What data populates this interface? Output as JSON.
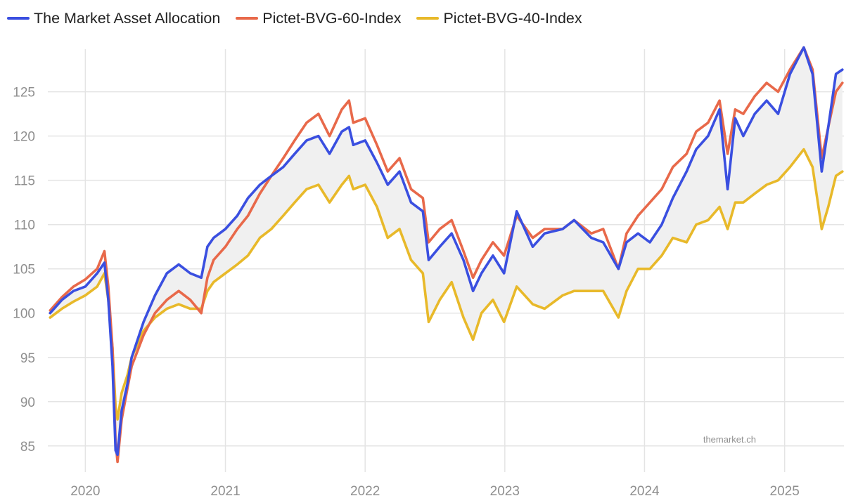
{
  "chart_data": {
    "type": "line",
    "title": "",
    "xlabel": "",
    "ylabel": "",
    "xlim": [
      "2019-09-25",
      "2025-06-05"
    ],
    "ylim": [
      83,
      131
    ],
    "grid": true,
    "legend_position": "top-left",
    "x_tick_labels": [
      "2020",
      "2021",
      "2022",
      "2023",
      "2024",
      "2025"
    ],
    "y_tick_labels": [
      "85",
      "90",
      "95",
      "100",
      "105",
      "110",
      "115",
      "120",
      "125"
    ],
    "watermark": "themarket.ch",
    "band_fill": "#f0f0f0",
    "series": [
      {
        "name": "The Market Asset Allocation",
        "color": "#3a4fe0",
        "points": [
          [
            "2019-10-01",
            100.0
          ],
          [
            "2019-11-01",
            101.5
          ],
          [
            "2019-12-01",
            102.5
          ],
          [
            "2020-01-01",
            103.0
          ],
          [
            "2020-02-01",
            104.5
          ],
          [
            "2020-02-20",
            105.7
          ],
          [
            "2020-03-01",
            101.5
          ],
          [
            "2020-03-12",
            94.0
          ],
          [
            "2020-03-20",
            84.5
          ],
          [
            "2020-03-25",
            84.0
          ],
          [
            "2020-04-05",
            89.0
          ],
          [
            "2020-04-20",
            92.0
          ],
          [
            "2020-05-01",
            95.0
          ],
          [
            "2020-06-01",
            99.0
          ],
          [
            "2020-07-01",
            102.0
          ],
          [
            "2020-08-01",
            104.5
          ],
          [
            "2020-09-01",
            105.5
          ],
          [
            "2020-10-01",
            104.5
          ],
          [
            "2020-10-30",
            104.0
          ],
          [
            "2020-11-15",
            107.5
          ],
          [
            "2020-12-01",
            108.5
          ],
          [
            "2021-01-01",
            109.5
          ],
          [
            "2021-02-01",
            111.0
          ],
          [
            "2021-03-01",
            113.0
          ],
          [
            "2021-04-01",
            114.5
          ],
          [
            "2021-05-01",
            115.5
          ],
          [
            "2021-06-01",
            116.5
          ],
          [
            "2021-07-01",
            118.0
          ],
          [
            "2021-08-01",
            119.5
          ],
          [
            "2021-09-01",
            120.0
          ],
          [
            "2021-09-30",
            118.0
          ],
          [
            "2021-11-01",
            120.5
          ],
          [
            "2021-11-20",
            121.0
          ],
          [
            "2021-12-01",
            119.0
          ],
          [
            "2022-01-01",
            119.5
          ],
          [
            "2022-02-01",
            117.0
          ],
          [
            "2022-03-01",
            114.5
          ],
          [
            "2022-04-01",
            116.0
          ],
          [
            "2022-05-01",
            112.5
          ],
          [
            "2022-06-01",
            111.5
          ],
          [
            "2022-06-16",
            106.0
          ],
          [
            "2022-07-15",
            107.5
          ],
          [
            "2022-08-15",
            109.0
          ],
          [
            "2022-09-15",
            106.0
          ],
          [
            "2022-10-10",
            102.5
          ],
          [
            "2022-11-01",
            104.5
          ],
          [
            "2022-12-01",
            106.5
          ],
          [
            "2022-12-30",
            104.5
          ],
          [
            "2023-02-01",
            111.5
          ],
          [
            "2023-03-15",
            107.5
          ],
          [
            "2023-04-15",
            109.0
          ],
          [
            "2023-06-01",
            109.5
          ],
          [
            "2023-07-01",
            110.5
          ],
          [
            "2023-08-15",
            108.5
          ],
          [
            "2023-09-15",
            108.0
          ],
          [
            "2023-10-25",
            105.0
          ],
          [
            "2023-11-15",
            108.0
          ],
          [
            "2023-12-15",
            109.0
          ],
          [
            "2024-01-15",
            108.0
          ],
          [
            "2024-02-15",
            110.0
          ],
          [
            "2024-03-15",
            113.0
          ],
          [
            "2024-04-20",
            116.0
          ],
          [
            "2024-05-15",
            118.5
          ],
          [
            "2024-06-15",
            120.0
          ],
          [
            "2024-07-15",
            123.0
          ],
          [
            "2024-08-05",
            114.0
          ],
          [
            "2024-08-25",
            122.0
          ],
          [
            "2024-09-15",
            120.0
          ],
          [
            "2024-10-15",
            122.5
          ],
          [
            "2024-11-15",
            124.0
          ],
          [
            "2024-12-15",
            122.5
          ],
          [
            "2025-01-15",
            127.0
          ],
          [
            "2025-02-20",
            130.0
          ],
          [
            "2025-03-15",
            127.0
          ],
          [
            "2025-04-08",
            116.0
          ],
          [
            "2025-04-25",
            121.0
          ],
          [
            "2025-05-15",
            127.0
          ],
          [
            "2025-06-01",
            127.5
          ]
        ]
      },
      {
        "name": "Pictet-BVG-60-Index",
        "color": "#e8694a",
        "points": [
          [
            "2019-10-01",
            100.3
          ],
          [
            "2019-11-01",
            101.8
          ],
          [
            "2019-12-01",
            103.0
          ],
          [
            "2020-01-01",
            103.8
          ],
          [
            "2020-02-01",
            105.0
          ],
          [
            "2020-02-20",
            107.0
          ],
          [
            "2020-03-01",
            103.0
          ],
          [
            "2020-03-12",
            96.0
          ],
          [
            "2020-03-20",
            85.5
          ],
          [
            "2020-03-25",
            83.2
          ],
          [
            "2020-04-05",
            88.0
          ],
          [
            "2020-04-20",
            91.5
          ],
          [
            "2020-05-01",
            94.0
          ],
          [
            "2020-06-01",
            97.5
          ],
          [
            "2020-07-01",
            100.0
          ],
          [
            "2020-08-01",
            101.5
          ],
          [
            "2020-09-01",
            102.5
          ],
          [
            "2020-10-01",
            101.5
          ],
          [
            "2020-10-30",
            100.0
          ],
          [
            "2020-11-15",
            104.0
          ],
          [
            "2020-12-01",
            106.0
          ],
          [
            "2021-01-01",
            107.5
          ],
          [
            "2021-02-01",
            109.5
          ],
          [
            "2021-03-01",
            111.0
          ],
          [
            "2021-04-01",
            113.5
          ],
          [
            "2021-05-01",
            115.5
          ],
          [
            "2021-06-01",
            117.5
          ],
          [
            "2021-07-01",
            119.5
          ],
          [
            "2021-08-01",
            121.5
          ],
          [
            "2021-09-01",
            122.5
          ],
          [
            "2021-09-30",
            120.0
          ],
          [
            "2021-11-01",
            123.0
          ],
          [
            "2021-11-20",
            124.0
          ],
          [
            "2021-12-01",
            121.5
          ],
          [
            "2022-01-01",
            122.0
          ],
          [
            "2022-02-01",
            119.0
          ],
          [
            "2022-03-01",
            116.0
          ],
          [
            "2022-04-01",
            117.5
          ],
          [
            "2022-05-01",
            114.0
          ],
          [
            "2022-06-01",
            113.0
          ],
          [
            "2022-06-16",
            108.0
          ],
          [
            "2022-07-15",
            109.5
          ],
          [
            "2022-08-15",
            110.5
          ],
          [
            "2022-09-15",
            107.0
          ],
          [
            "2022-10-10",
            104.0
          ],
          [
            "2022-11-01",
            106.0
          ],
          [
            "2022-12-01",
            108.0
          ],
          [
            "2022-12-30",
            106.5
          ],
          [
            "2023-02-01",
            111.0
          ],
          [
            "2023-03-15",
            108.5
          ],
          [
            "2023-04-15",
            109.5
          ],
          [
            "2023-06-01",
            109.5
          ],
          [
            "2023-07-01",
            110.5
          ],
          [
            "2023-08-15",
            109.0
          ],
          [
            "2023-09-15",
            109.5
          ],
          [
            "2023-10-25",
            105.0
          ],
          [
            "2023-11-15",
            109.0
          ],
          [
            "2023-12-15",
            111.0
          ],
          [
            "2024-01-15",
            112.5
          ],
          [
            "2024-02-15",
            114.0
          ],
          [
            "2024-03-15",
            116.5
          ],
          [
            "2024-04-20",
            118.0
          ],
          [
            "2024-05-15",
            120.5
          ],
          [
            "2024-06-15",
            121.5
          ],
          [
            "2024-07-15",
            124.0
          ],
          [
            "2024-08-05",
            118.0
          ],
          [
            "2024-08-25",
            123.0
          ],
          [
            "2024-09-15",
            122.5
          ],
          [
            "2024-10-15",
            124.5
          ],
          [
            "2024-11-15",
            126.0
          ],
          [
            "2024-12-15",
            125.0
          ],
          [
            "2025-01-15",
            127.5
          ],
          [
            "2025-02-20",
            130.0
          ],
          [
            "2025-03-15",
            127.5
          ],
          [
            "2025-04-08",
            117.5
          ],
          [
            "2025-04-25",
            121.0
          ],
          [
            "2025-05-15",
            125.0
          ],
          [
            "2025-06-01",
            126.0
          ]
        ]
      },
      {
        "name": "Pictet-BVG-40-Index",
        "color": "#e8b92a",
        "points": [
          [
            "2019-10-01",
            99.5
          ],
          [
            "2019-11-01",
            100.5
          ],
          [
            "2019-12-01",
            101.3
          ],
          [
            "2020-01-01",
            102.0
          ],
          [
            "2020-02-01",
            103.0
          ],
          [
            "2020-02-20",
            104.5
          ],
          [
            "2020-03-01",
            101.5
          ],
          [
            "2020-03-12",
            96.0
          ],
          [
            "2020-03-20",
            89.5
          ],
          [
            "2020-03-25",
            88.0
          ],
          [
            "2020-04-05",
            91.0
          ],
          [
            "2020-04-20",
            93.0
          ],
          [
            "2020-05-01",
            95.0
          ],
          [
            "2020-06-01",
            98.0
          ],
          [
            "2020-07-01",
            99.5
          ],
          [
            "2020-08-01",
            100.5
          ],
          [
            "2020-09-01",
            101.0
          ],
          [
            "2020-10-01",
            100.5
          ],
          [
            "2020-10-30",
            100.5
          ],
          [
            "2020-11-15",
            102.5
          ],
          [
            "2020-12-01",
            103.5
          ],
          [
            "2021-01-01",
            104.5
          ],
          [
            "2021-02-01",
            105.5
          ],
          [
            "2021-03-01",
            106.5
          ],
          [
            "2021-04-01",
            108.5
          ],
          [
            "2021-05-01",
            109.5
          ],
          [
            "2021-06-01",
            111.0
          ],
          [
            "2021-07-01",
            112.5
          ],
          [
            "2021-08-01",
            114.0
          ],
          [
            "2021-09-01",
            114.5
          ],
          [
            "2021-09-30",
            112.5
          ],
          [
            "2021-11-01",
            114.5
          ],
          [
            "2021-11-20",
            115.5
          ],
          [
            "2021-12-01",
            114.0
          ],
          [
            "2022-01-01",
            114.5
          ],
          [
            "2022-02-01",
            112.0
          ],
          [
            "2022-03-01",
            108.5
          ],
          [
            "2022-04-01",
            109.5
          ],
          [
            "2022-05-01",
            106.0
          ],
          [
            "2022-06-01",
            104.5
          ],
          [
            "2022-06-16",
            99.0
          ],
          [
            "2022-07-15",
            101.5
          ],
          [
            "2022-08-15",
            103.5
          ],
          [
            "2022-09-15",
            99.5
          ],
          [
            "2022-10-10",
            97.0
          ],
          [
            "2022-11-01",
            100.0
          ],
          [
            "2022-12-01",
            101.5
          ],
          [
            "2022-12-30",
            99.0
          ],
          [
            "2023-02-01",
            103.0
          ],
          [
            "2023-03-15",
            101.0
          ],
          [
            "2023-04-15",
            100.5
          ],
          [
            "2023-06-01",
            102.0
          ],
          [
            "2023-07-01",
            102.5
          ],
          [
            "2023-08-15",
            102.5
          ],
          [
            "2023-09-15",
            102.5
          ],
          [
            "2023-10-25",
            99.5
          ],
          [
            "2023-11-15",
            102.5
          ],
          [
            "2023-12-15",
            105.0
          ],
          [
            "2024-01-15",
            105.0
          ],
          [
            "2024-02-15",
            106.5
          ],
          [
            "2024-03-15",
            108.5
          ],
          [
            "2024-04-20",
            108.0
          ],
          [
            "2024-05-15",
            110.0
          ],
          [
            "2024-06-15",
            110.5
          ],
          [
            "2024-07-15",
            112.0
          ],
          [
            "2024-08-05",
            109.5
          ],
          [
            "2024-08-25",
            112.5
          ],
          [
            "2024-09-15",
            112.5
          ],
          [
            "2024-10-15",
            113.5
          ],
          [
            "2024-11-15",
            114.5
          ],
          [
            "2024-12-15",
            115.0
          ],
          [
            "2025-01-15",
            116.5
          ],
          [
            "2025-02-20",
            118.5
          ],
          [
            "2025-03-15",
            116.5
          ],
          [
            "2025-04-08",
            109.5
          ],
          [
            "2025-04-25",
            112.0
          ],
          [
            "2025-05-15",
            115.5
          ],
          [
            "2025-06-01",
            116.0
          ]
        ]
      }
    ]
  }
}
